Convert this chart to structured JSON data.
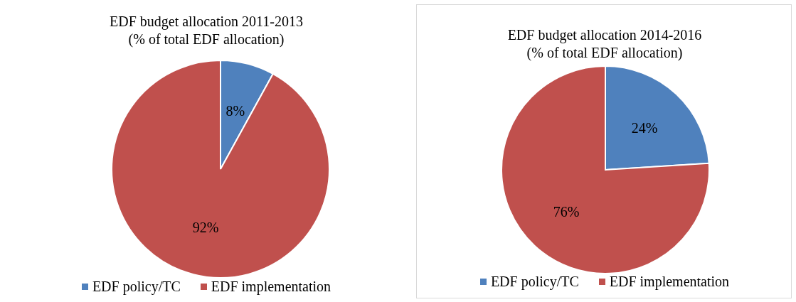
{
  "chart_data": [
    {
      "type": "pie",
      "title": "EDF budget allocation 2011-2013",
      "subtitle": "(% of total EDF allocation)",
      "categories": [
        "EDF policy/TC",
        "EDF implementation"
      ],
      "values": [
        8,
        92
      ],
      "colors": [
        "#4f81bd",
        "#c0504d"
      ],
      "value_labels": [
        "8%",
        "92%"
      ],
      "legend": "bottom"
    },
    {
      "type": "pie",
      "title": "EDF budget allocation 2014-2016",
      "subtitle": "(% of total EDF allocation)",
      "categories": [
        "EDF policy/TC",
        "EDF implementation"
      ],
      "values": [
        24,
        76
      ],
      "colors": [
        "#4f81bd",
        "#c0504d"
      ],
      "value_labels": [
        "24%",
        "76%"
      ],
      "legend": "bottom"
    }
  ]
}
